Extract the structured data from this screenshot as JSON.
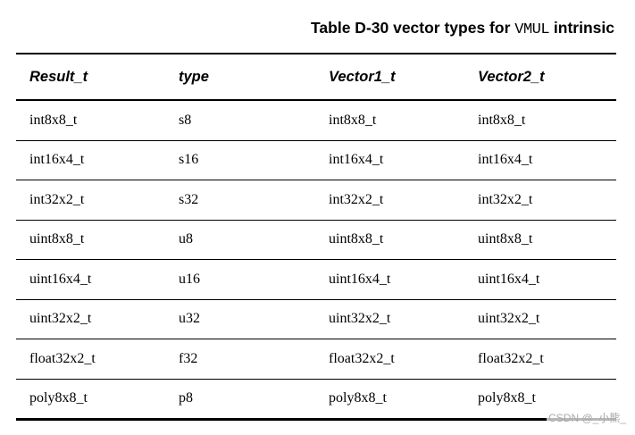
{
  "title": {
    "prefix": "Table D-30 vector types for ",
    "code": "VMUL",
    "suffix": " intrinsic"
  },
  "table": {
    "headers": [
      "Result_t",
      "type",
      "Vector1_t",
      "Vector2_t"
    ],
    "rows": [
      [
        "int8x8_t",
        "s8",
        "int8x8_t",
        "int8x8_t"
      ],
      [
        "int16x4_t",
        "s16",
        "int16x4_t",
        "int16x4_t"
      ],
      [
        "int32x2_t",
        "s32",
        "int32x2_t",
        "int32x2_t"
      ],
      [
        "uint8x8_t",
        "u8",
        "uint8x8_t",
        "uint8x8_t"
      ],
      [
        "uint16x4_t",
        "u16",
        "uint16x4_t",
        "uint16x4_t"
      ],
      [
        "uint32x2_t",
        "u32",
        "uint32x2_t",
        "uint32x2_t"
      ],
      [
        "float32x2_t",
        "f32",
        "float32x2_t",
        "float32x2_t"
      ],
      [
        "poly8x8_t",
        "p8",
        "poly8x8_t",
        "poly8x8_t"
      ]
    ]
  },
  "watermark": {
    "text": "CSDN @_小熊_",
    "color": "#a9a9a9"
  },
  "colors": {
    "text": "#000000",
    "rule": "#000000",
    "background": "#ffffff"
  }
}
